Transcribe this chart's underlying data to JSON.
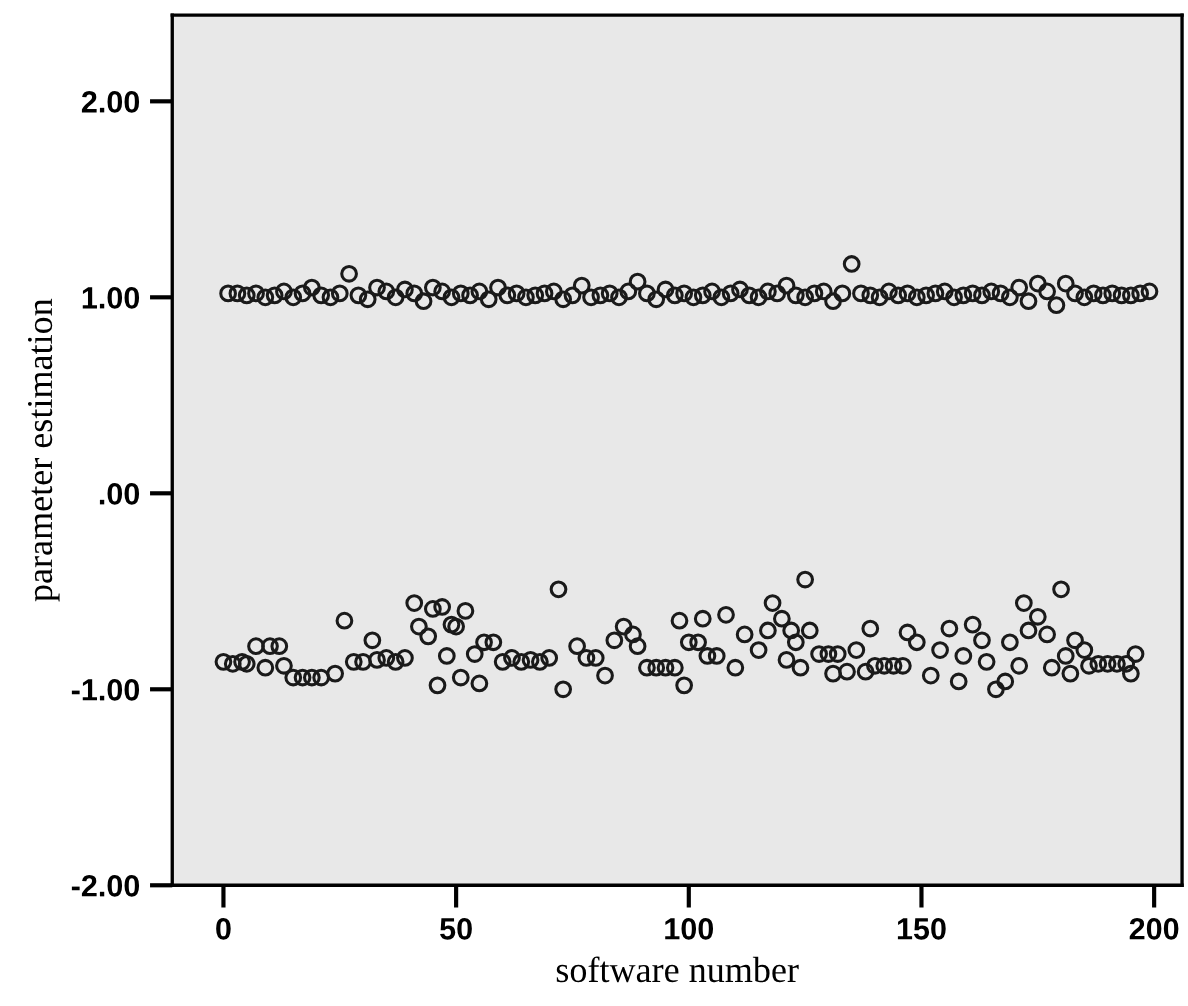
{
  "chart_data": {
    "type": "scatter",
    "xlabel": "software number",
    "ylabel": "parameter estimation",
    "xlim": [
      -11,
      206
    ],
    "ylim": [
      -2.0,
      2.44
    ],
    "xticks": [
      0,
      50,
      100,
      150,
      200
    ],
    "yticks": [
      {
        "value": -2,
        "label": "-2.00"
      },
      {
        "value": -1,
        "label": "-1.00"
      },
      {
        "value": 0,
        "label": ".00"
      },
      {
        "value": 1,
        "label": "1.00"
      },
      {
        "value": 2,
        "label": "2.00"
      }
    ],
    "grid": false,
    "marker": "circle",
    "series": [
      {
        "color": "#1a1a1a",
        "x": [
          1,
          3,
          5,
          7,
          9,
          11,
          13,
          15,
          17,
          19,
          21,
          23,
          25,
          27,
          29,
          31,
          33,
          35,
          37,
          39,
          41,
          43,
          45,
          47,
          49,
          51,
          53,
          55,
          57,
          59,
          61,
          63,
          65,
          67,
          69,
          71,
          73,
          75,
          77,
          79,
          81,
          83,
          85,
          87,
          89,
          91,
          93,
          95,
          97,
          99,
          101,
          103,
          105,
          107,
          109,
          111,
          113,
          115,
          117,
          119,
          121,
          123,
          125,
          127,
          129,
          131,
          133,
          135,
          137,
          139,
          141,
          143,
          145,
          147,
          149,
          151,
          153,
          155,
          157,
          159,
          161,
          163,
          165,
          167,
          169,
          171,
          173,
          175,
          177,
          179,
          181,
          183,
          185,
          187,
          189,
          191,
          193,
          195,
          197,
          199
        ],
        "values": [
          1.02,
          1.02,
          1.01,
          1.02,
          1.0,
          1.01,
          1.03,
          1.0,
          1.02,
          1.05,
          1.01,
          1.0,
          1.02,
          1.12,
          1.01,
          0.99,
          1.05,
          1.03,
          1.0,
          1.04,
          1.02,
          0.98,
          1.05,
          1.03,
          1.0,
          1.02,
          1.01,
          1.03,
          0.99,
          1.05,
          1.01,
          1.02,
          1.0,
          1.01,
          1.02,
          1.03,
          0.99,
          1.01,
          1.06,
          1.0,
          1.01,
          1.02,
          1.0,
          1.03,
          1.08,
          1.02,
          0.99,
          1.04,
          1.01,
          1.02,
          1.0,
          1.01,
          1.03,
          1.0,
          1.02,
          1.04,
          1.01,
          1.0,
          1.03,
          1.02,
          1.06,
          1.01,
          1.0,
          1.02,
          1.03,
          0.98,
          1.02,
          1.17,
          1.02,
          1.01,
          1.0,
          1.03,
          1.01,
          1.02,
          1.0,
          1.01,
          1.02,
          1.03,
          1.0,
          1.01,
          1.02,
          1.01,
          1.03,
          1.02,
          1.0,
          1.05,
          0.98,
          1.07,
          1.03,
          0.96,
          1.07,
          1.02,
          1.0,
          1.02,
          1.01,
          1.02,
          1.01,
          1.01,
          1.02,
          1.03
        ]
      },
      {
        "color": "#1a1a1a",
        "x": [
          0,
          2,
          4,
          5,
          7,
          9,
          10,
          12,
          13,
          15,
          17,
          19,
          21,
          24,
          26,
          28,
          30,
          32,
          33,
          35,
          37,
          39,
          41,
          42,
          44,
          45,
          46,
          47,
          48,
          49,
          50,
          51,
          52,
          54,
          55,
          56,
          58,
          60,
          62,
          64,
          66,
          68,
          70,
          72,
          73,
          76,
          78,
          80,
          82,
          84,
          86,
          88,
          89,
          91,
          93,
          95,
          97,
          98,
          99,
          100,
          102,
          103,
          104,
          106,
          108,
          110,
          112,
          115,
          117,
          118,
          120,
          121,
          122,
          123,
          124,
          125,
          126,
          128,
          130,
          131,
          132,
          134,
          136,
          138,
          139,
          140,
          142,
          144,
          146,
          147,
          149,
          152,
          154,
          156,
          158,
          159,
          161,
          163,
          164,
          166,
          168,
          169,
          171,
          172,
          173,
          175,
          177,
          178,
          180,
          181,
          182,
          183,
          185,
          186,
          188,
          190,
          192,
          194,
          195,
          196
        ],
        "values": [
          -0.86,
          -0.87,
          -0.86,
          -0.87,
          -0.78,
          -0.89,
          -0.78,
          -0.78,
          -0.88,
          -0.94,
          -0.94,
          -0.94,
          -0.94,
          -0.92,
          -0.65,
          -0.86,
          -0.86,
          -0.75,
          -0.85,
          -0.84,
          -0.86,
          -0.84,
          -0.56,
          -0.68,
          -0.73,
          -0.59,
          -0.98,
          -0.58,
          -0.83,
          -0.67,
          -0.68,
          -0.94,
          -0.6,
          -0.82,
          -0.97,
          -0.76,
          -0.76,
          -0.86,
          -0.84,
          -0.86,
          -0.85,
          -0.86,
          -0.84,
          -0.49,
          -1.0,
          -0.78,
          -0.84,
          -0.84,
          -0.93,
          -0.75,
          -0.68,
          -0.72,
          -0.78,
          -0.89,
          -0.89,
          -0.89,
          -0.89,
          -0.65,
          -0.98,
          -0.76,
          -0.76,
          -0.64,
          -0.83,
          -0.83,
          -0.62,
          -0.89,
          -0.72,
          -0.8,
          -0.7,
          -0.56,
          -0.64,
          -0.85,
          -0.7,
          -0.76,
          -0.89,
          -0.44,
          -0.7,
          -0.82,
          -0.82,
          -0.92,
          -0.82,
          -0.91,
          -0.8,
          -0.91,
          -0.69,
          -0.88,
          -0.88,
          -0.88,
          -0.88,
          -0.71,
          -0.76,
          -0.93,
          -0.8,
          -0.69,
          -0.96,
          -0.83,
          -0.67,
          -0.75,
          -0.86,
          -1.0,
          -0.96,
          -0.76,
          -0.88,
          -0.56,
          -0.7,
          -0.63,
          -0.72,
          -0.89,
          -0.49,
          -0.83,
          -0.92,
          -0.75,
          -0.8,
          -0.88,
          -0.87,
          -0.87,
          -0.87,
          -0.87,
          -0.92,
          -0.82
        ]
      }
    ]
  }
}
